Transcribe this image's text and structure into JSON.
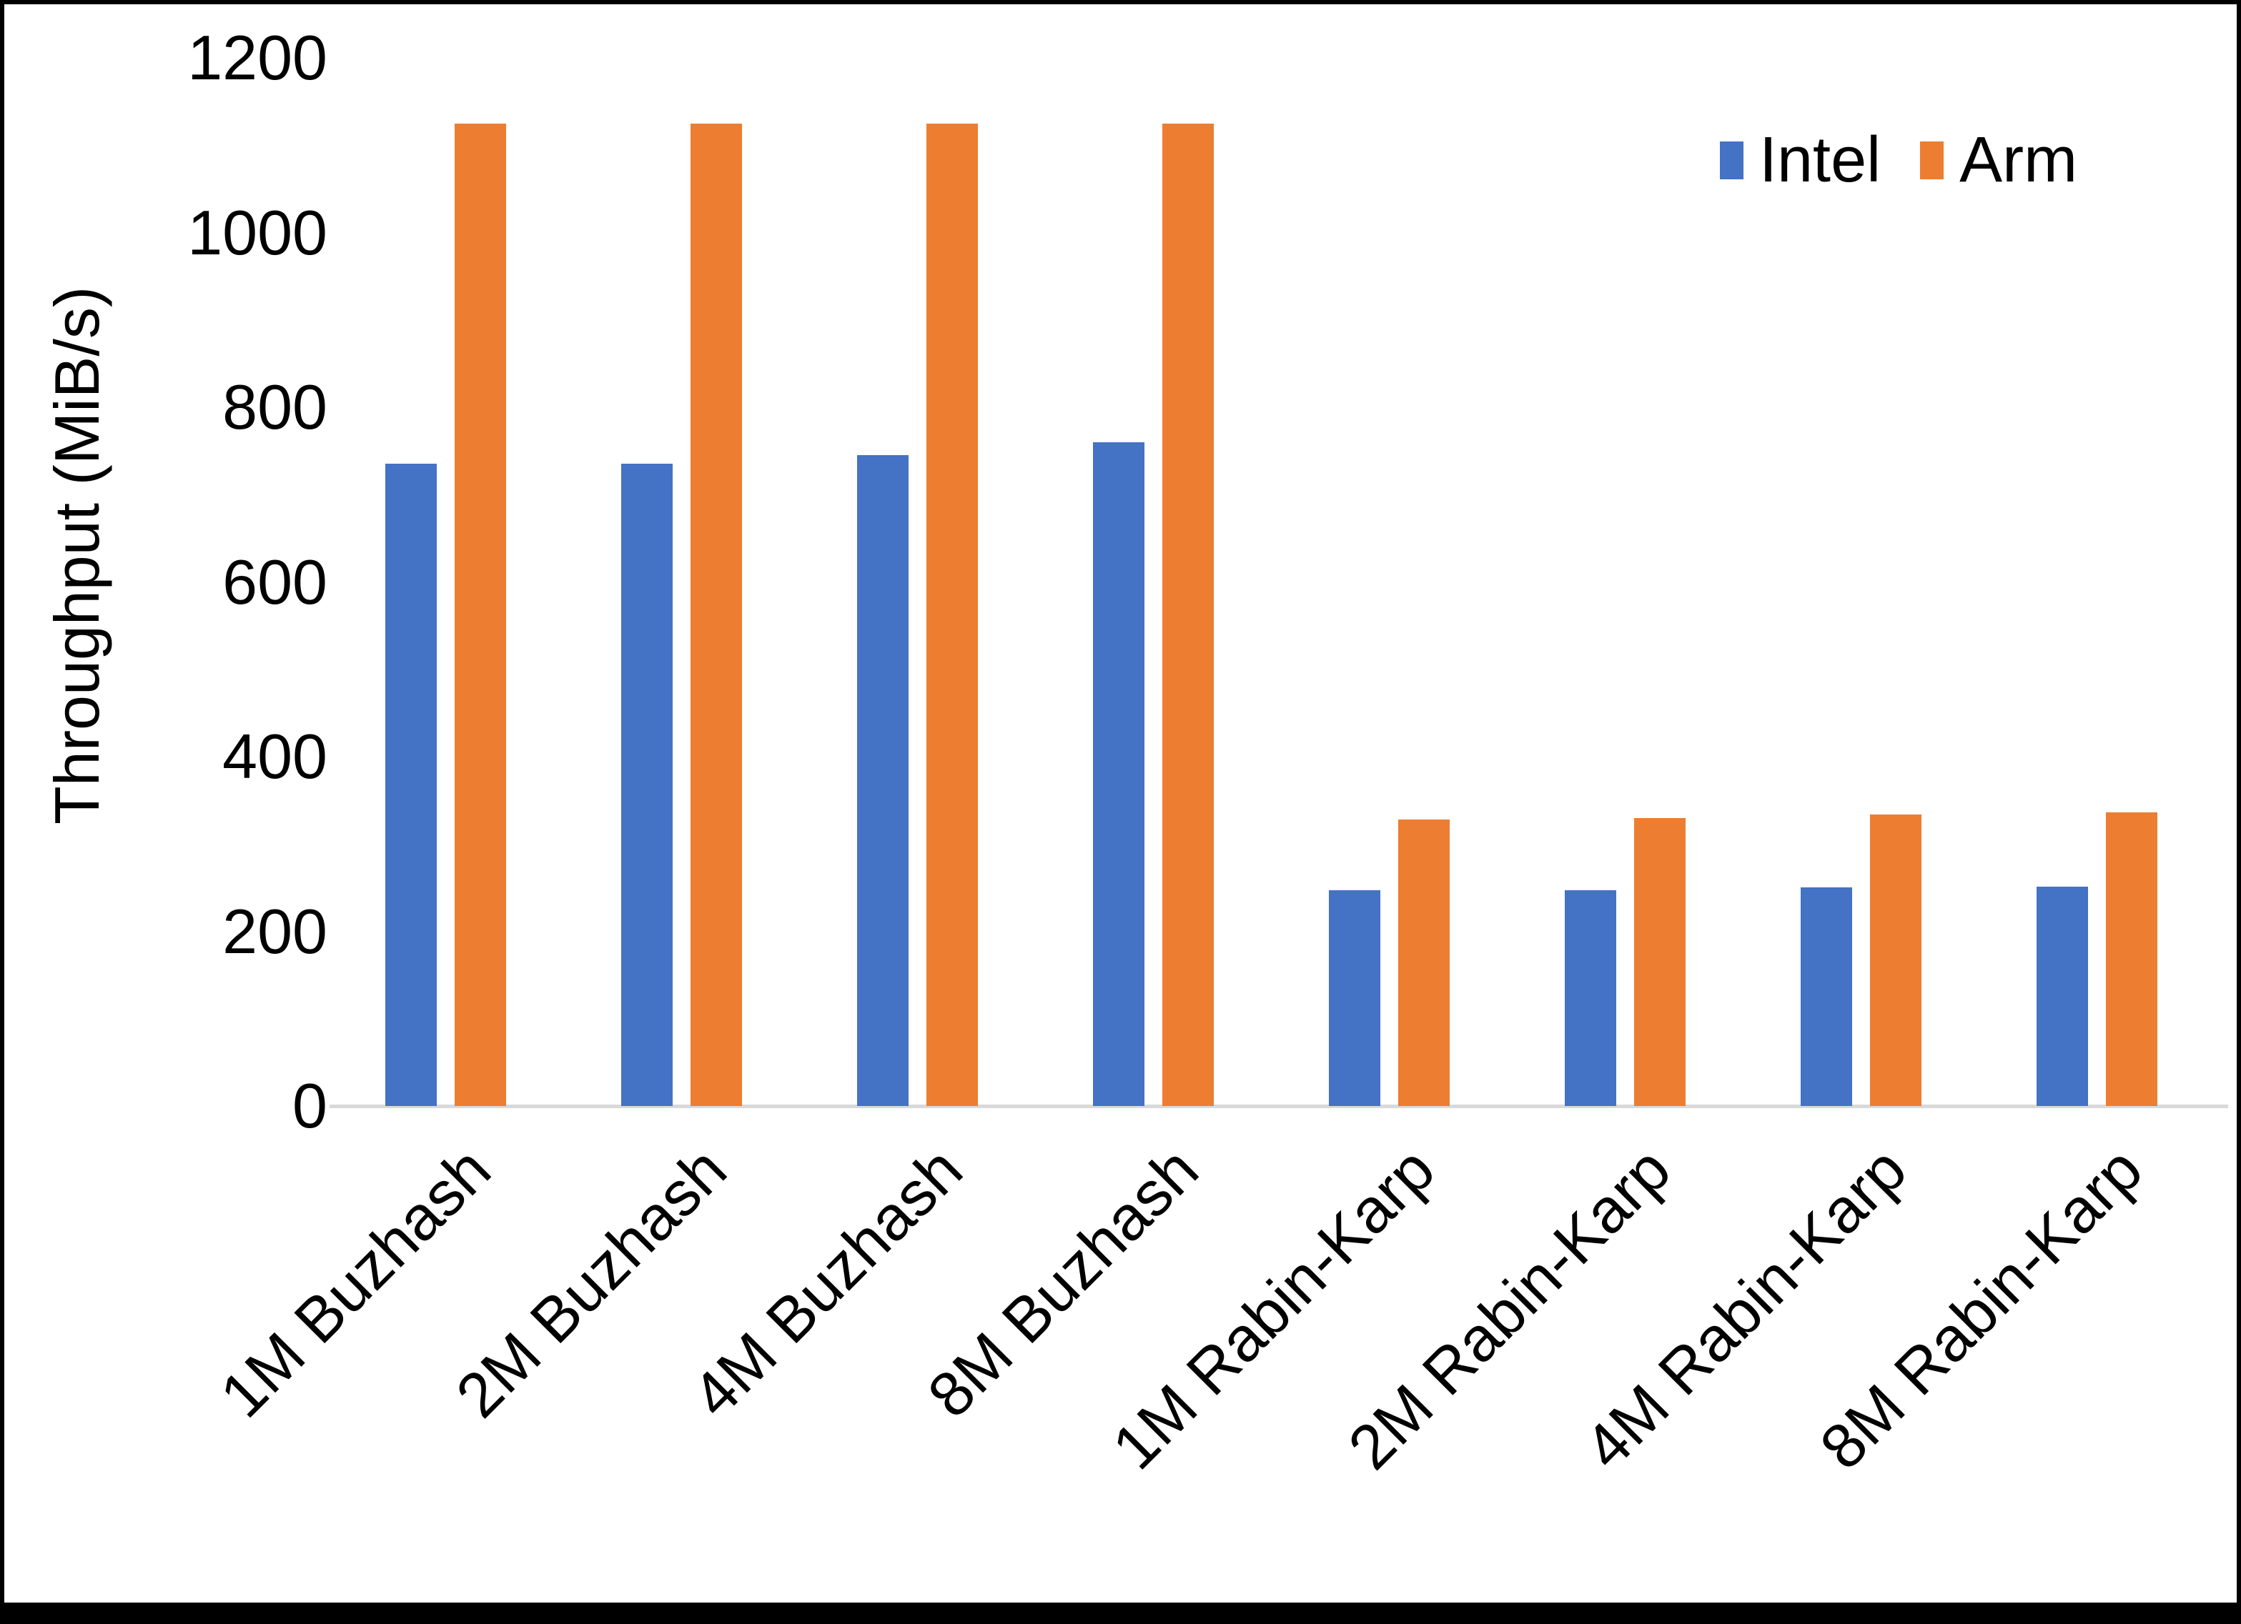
{
  "chart_data": {
    "type": "bar",
    "title": "",
    "xlabel": "",
    "ylabel": "Throughput (MiB/s)",
    "categories": [
      "1M Buzhash",
      "2M Buzhash",
      "4M Buzhash",
      "8M Buzhash",
      "1M Rabin-Karp",
      "2M Rabin-Karp",
      "4M Rabin-Karp",
      "8M Rabin-Karp"
    ],
    "series": [
      {
        "name": "Intel",
        "color": "#4472C4",
        "values": [
          735,
          735,
          745,
          760,
          247,
          247,
          250,
          251
        ]
      },
      {
        "name": "Arm",
        "color": "#ED7D31",
        "values": [
          1125,
          1125,
          1125,
          1125,
          328,
          330,
          334,
          336
        ]
      }
    ],
    "ylim": [
      0,
      1200
    ],
    "y_ticks": [
      0,
      200,
      400,
      600,
      800,
      1000,
      1200
    ],
    "grid": false,
    "legend_position": "top-right"
  },
  "colors": {
    "axis_line": "#D9D9D9",
    "text": "#000000",
    "background": "#FFFFFF",
    "frame_border": "#000000"
  }
}
